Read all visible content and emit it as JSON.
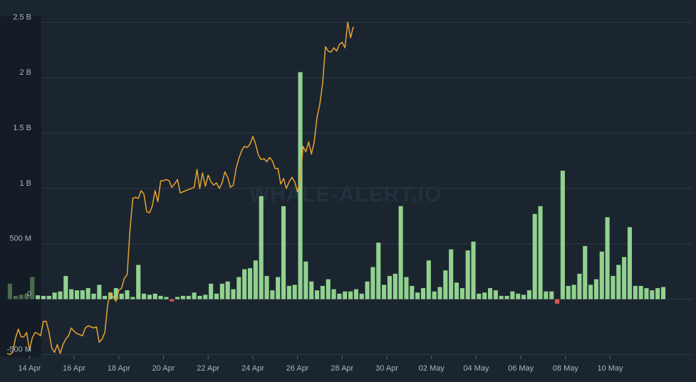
{
  "watermark": "WHALE-ALERT.IO",
  "colors": {
    "background": "#1b2530",
    "grid": "#2c3a47",
    "bar_positive": "#92d18f",
    "bar_positive_dim": "#4a6a4d",
    "bar_negative": "#e05454",
    "line": "#e6a430"
  },
  "chart_data": {
    "type": "bar+line",
    "ylim": [
      -510000000,
      2560000000
    ],
    "yticks": [
      {
        "value": 2500000000,
        "label": "2.5 B"
      },
      {
        "value": 2000000000,
        "label": "2 B"
      },
      {
        "value": 1500000000,
        "label": "1.5 B"
      },
      {
        "value": 1000000000,
        "label": "1 B"
      },
      {
        "value": 500000000,
        "label": "500 M"
      },
      {
        "value": 0,
        "label": "0"
      },
      {
        "value": -500000000,
        "label": "-500 M"
      }
    ],
    "xlim": [
      0,
      30.3
    ],
    "xticks": [
      {
        "value": 1,
        "label": "14 Apr"
      },
      {
        "value": 3,
        "label": "16 Apr"
      },
      {
        "value": 5,
        "label": "18 Apr"
      },
      {
        "value": 7,
        "label": "20 Apr"
      },
      {
        "value": 9,
        "label": "22 Apr"
      },
      {
        "value": 11,
        "label": "24 Apr"
      },
      {
        "value": 13,
        "label": "26 Apr"
      },
      {
        "value": 15,
        "label": "28 Apr"
      },
      {
        "value": 17,
        "label": "30 Apr"
      },
      {
        "value": 19,
        "label": "02 May"
      },
      {
        "value": 21,
        "label": "04 May"
      },
      {
        "value": 23,
        "label": "06 May"
      },
      {
        "value": 25,
        "label": "08 May"
      },
      {
        "value": 27,
        "label": "10 May"
      }
    ],
    "bar_step": 0.25,
    "bar_values_millions": [
      140,
      30,
      40,
      50,
      200,
      35,
      30,
      30,
      60,
      70,
      210,
      90,
      80,
      80,
      100,
      50,
      130,
      30,
      60,
      100,
      50,
      80,
      20,
      310,
      50,
      40,
      50,
      30,
      20,
      -20,
      20,
      30,
      30,
      60,
      30,
      40,
      140,
      50,
      140,
      160,
      90,
      200,
      270,
      280,
      350,
      930,
      210,
      80,
      200,
      840,
      120,
      130,
      2050,
      340,
      160,
      80,
      120,
      180,
      90,
      50,
      70,
      70,
      90,
      50,
      160,
      290,
      510,
      130,
      210,
      230,
      840,
      200,
      120,
      60,
      100,
      350,
      70,
      110,
      260,
      450,
      150,
      100,
      440,
      520,
      50,
      60,
      100,
      80,
      30,
      30,
      70,
      50,
      40,
      80,
      770,
      840,
      70,
      70,
      -40,
      1160,
      120,
      130,
      230,
      480,
      130,
      180,
      430,
      740,
      210,
      310,
      380,
      650,
      120,
      120,
      100,
      80,
      100,
      110
    ],
    "bar_dim_count": 5,
    "line_step": 0.125,
    "line_values_millions": [
      -490,
      -500,
      -480,
      -350,
      -270,
      -340,
      -340,
      -300,
      -460,
      -350,
      -300,
      -310,
      -330,
      -200,
      -200,
      -300,
      -440,
      -480,
      -410,
      -490,
      -410,
      -360,
      -330,
      -260,
      -290,
      -310,
      -320,
      -330,
      -260,
      -240,
      -250,
      -260,
      -250,
      -390,
      -360,
      -300,
      -50,
      60,
      20,
      -20,
      80,
      100,
      190,
      220,
      620,
      910,
      920,
      910,
      980,
      950,
      790,
      780,
      840,
      980,
      880,
      1070,
      1070,
      1080,
      1070,
      1010,
      1040,
      1080,
      960,
      970,
      980,
      990,
      1000,
      1010,
      1170,
      1000,
      1140,
      1020,
      1120,
      1060,
      1030,
      1050,
      1000,
      1050,
      1150,
      1100,
      1010,
      1030,
      1180,
      1270,
      1340,
      1380,
      1370,
      1400,
      1470,
      1400,
      1300,
      1260,
      1270,
      1240,
      1280,
      1250,
      1180,
      1180,
      1040,
      1090,
      1000,
      1060,
      1100,
      1060,
      970,
      1080,
      1380,
      1330,
      1420,
      1310,
      1420,
      1640,
      1760,
      1950,
      2280,
      2240,
      2230,
      2270,
      2240,
      2300,
      2320,
      2270,
      2500,
      2360,
      2460
    ]
  }
}
